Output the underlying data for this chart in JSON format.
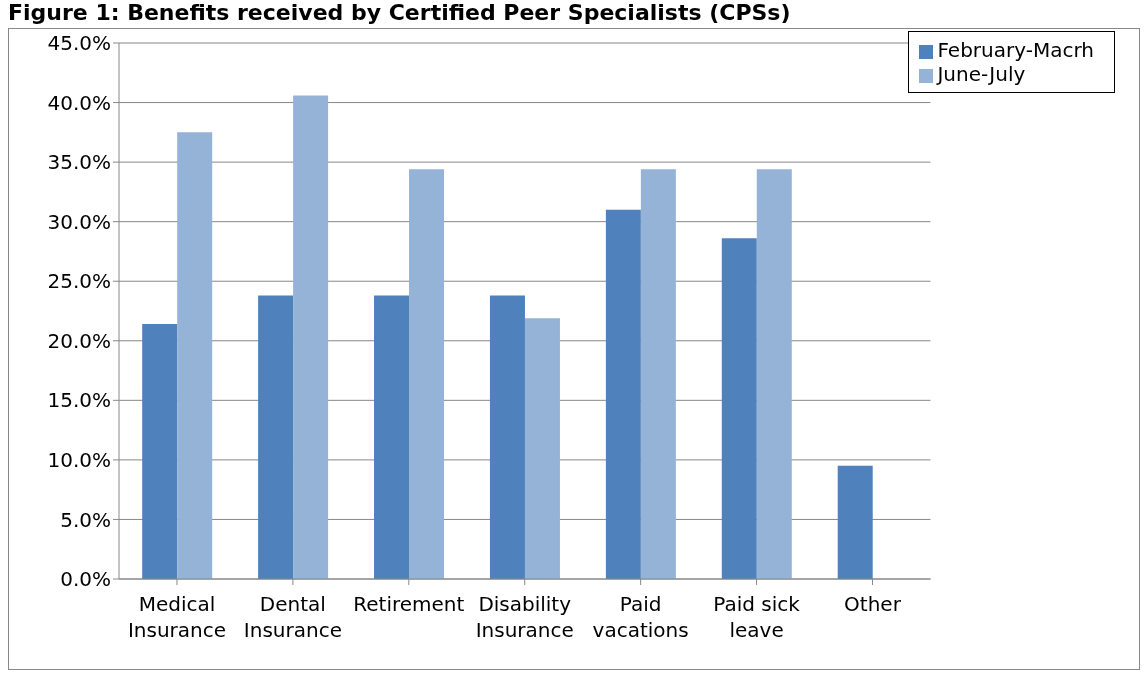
{
  "chart_data": {
    "type": "bar",
    "title": "Figure 1: Benefits received by Certified Peer Specialists (CPSs)",
    "categories": [
      "Medical Insurance",
      "Dental Insurance",
      "Retirement",
      "Disability Insurance",
      "Paid vacations",
      "Paid sick leave",
      "Other"
    ],
    "series": [
      {
        "name": "February-Macrh",
        "color": "#4f81bd",
        "values": [
          21.4,
          23.8,
          23.8,
          23.8,
          31.0,
          28.6,
          9.5
        ]
      },
      {
        "name": "June-July",
        "color": "#95b3d7",
        "values": [
          37.5,
          40.6,
          34.4,
          21.9,
          34.4,
          34.4,
          null
        ]
      }
    ],
    "ylim": [
      0,
      45
    ],
    "yticks": [
      {
        "value": 0,
        "label": "0.0%"
      },
      {
        "value": 5,
        "label": "5.0%"
      },
      {
        "value": 10,
        "label": "10.0%"
      },
      {
        "value": 15,
        "label": "15.0%"
      },
      {
        "value": 20,
        "label": "20.0%"
      },
      {
        "value": 25,
        "label": "25.0%"
      },
      {
        "value": 30,
        "label": "30.0%"
      },
      {
        "value": 35,
        "label": "35.0%"
      },
      {
        "value": 40,
        "label": "40.0%"
      },
      {
        "value": 45,
        "label": "45.0%"
      }
    ],
    "grid": "y",
    "legend": "top right"
  }
}
